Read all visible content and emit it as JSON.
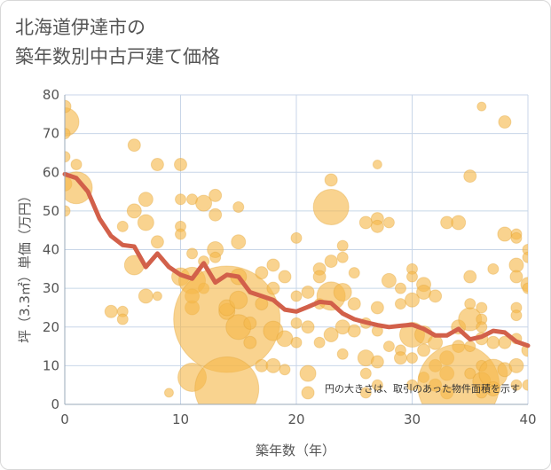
{
  "title_lines": [
    "北海道伊達市の",
    "築年数別中古戸建て価格"
  ],
  "colors": {
    "bubble": "#f5b84a",
    "bubble_stroke": "#e0a030",
    "line": "#d2604a",
    "grid": "#c8d6e8",
    "axis_text": "#555555"
  },
  "chart_data": {
    "type": "scatter",
    "xlabel": "築年数（年）",
    "ylabel": "坪（3.3㎡）単価（万円）",
    "xlim": [
      0,
      40
    ],
    "ylim": [
      0,
      80
    ],
    "x_ticks": [
      0,
      10,
      20,
      30,
      40
    ],
    "y_ticks": [
      0,
      10,
      20,
      30,
      40,
      50,
      60,
      70,
      80
    ],
    "grid": true,
    "annotation": "円の大きさは、取引のあった物件面積を示す",
    "average_line": {
      "x": [
        0,
        1,
        2,
        3,
        4,
        5,
        6,
        7,
        8,
        9,
        10,
        11,
        12,
        13,
        14,
        15,
        16,
        17,
        18,
        19,
        20,
        21,
        22,
        23,
        24,
        25,
        26,
        27,
        28,
        29,
        30,
        31,
        32,
        33,
        34,
        35,
        36,
        37,
        38,
        39,
        40
      ],
      "y": [
        59.5,
        58.5,
        55,
        48,
        43.5,
        41.2,
        40.8,
        35.5,
        39,
        35.5,
        33.5,
        32.5,
        36.5,
        31.5,
        33.5,
        33,
        29,
        28,
        27,
        24.5,
        24,
        25.2,
        26.5,
        26.2,
        23.5,
        22,
        21.2,
        20.5,
        20,
        20.3,
        20.6,
        19.5,
        17.8,
        17.8,
        19.5,
        16.8,
        17.5,
        19,
        18.6,
        16.2,
        15.2
      ]
    },
    "bubbles": [
      {
        "x": 0,
        "y": 73,
        "s": 16
      },
      {
        "x": 0,
        "y": 77,
        "s": 7
      },
      {
        "x": 0,
        "y": 70,
        "s": 6
      },
      {
        "x": 0,
        "y": 64,
        "s": 6
      },
      {
        "x": 0,
        "y": 57,
        "s": 8
      },
      {
        "x": 0,
        "y": 50,
        "s": 6
      },
      {
        "x": 1,
        "y": 62,
        "s": 6
      },
      {
        "x": 1,
        "y": 56,
        "s": 18
      },
      {
        "x": 4,
        "y": 24,
        "s": 7
      },
      {
        "x": 5,
        "y": 46,
        "s": 6
      },
      {
        "x": 5,
        "y": 24,
        "s": 6
      },
      {
        "x": 5,
        "y": 22,
        "s": 6
      },
      {
        "x": 6,
        "y": 67,
        "s": 7
      },
      {
        "x": 6,
        "y": 50,
        "s": 8
      },
      {
        "x": 6,
        "y": 36,
        "s": 11
      },
      {
        "x": 7,
        "y": 53,
        "s": 8
      },
      {
        "x": 7,
        "y": 47,
        "s": 9
      },
      {
        "x": 7,
        "y": 28,
        "s": 8
      },
      {
        "x": 8,
        "y": 62,
        "s": 7
      },
      {
        "x": 8,
        "y": 42,
        "s": 7
      },
      {
        "x": 8,
        "y": 28,
        "s": 5
      },
      {
        "x": 9,
        "y": 3,
        "s": 5
      },
      {
        "x": 10,
        "y": 62,
        "s": 7
      },
      {
        "x": 10,
        "y": 53,
        "s": 6
      },
      {
        "x": 10,
        "y": 46,
        "s": 6
      },
      {
        "x": 10,
        "y": 44,
        "s": 6
      },
      {
        "x": 10,
        "y": 33,
        "s": 10
      },
      {
        "x": 11,
        "y": 53,
        "s": 6
      },
      {
        "x": 11,
        "y": 39,
        "s": 6
      },
      {
        "x": 11,
        "y": 32,
        "s": 15
      },
      {
        "x": 11,
        "y": 25,
        "s": 8
      },
      {
        "x": 11,
        "y": 28,
        "s": 8
      },
      {
        "x": 11,
        "y": 7,
        "s": 16
      },
      {
        "x": 12,
        "y": 52,
        "s": 9
      },
      {
        "x": 12,
        "y": 37,
        "s": 6
      },
      {
        "x": 12,
        "y": 30,
        "s": 6
      },
      {
        "x": 13,
        "y": 54,
        "s": 7
      },
      {
        "x": 13,
        "y": 49,
        "s": 7
      },
      {
        "x": 13,
        "y": 40,
        "s": 9
      },
      {
        "x": 13,
        "y": 38,
        "s": 6
      },
      {
        "x": 14,
        "y": 22,
        "s": 60
      },
      {
        "x": 14,
        "y": 4,
        "s": 36
      },
      {
        "x": 14,
        "y": 24,
        "s": 9
      },
      {
        "x": 14,
        "y": 25,
        "s": 9
      },
      {
        "x": 15,
        "y": 51,
        "s": 6
      },
      {
        "x": 15,
        "y": 42,
        "s": 8
      },
      {
        "x": 15,
        "y": 33,
        "s": 9
      },
      {
        "x": 15,
        "y": 27,
        "s": 10
      },
      {
        "x": 15,
        "y": 20,
        "s": 14
      },
      {
        "x": 16,
        "y": 21,
        "s": 7
      },
      {
        "x": 16,
        "y": 16,
        "s": 7
      },
      {
        "x": 17,
        "y": 34,
        "s": 7
      },
      {
        "x": 17,
        "y": 26,
        "s": 7
      },
      {
        "x": 17,
        "y": 10,
        "s": 7
      },
      {
        "x": 18,
        "y": 36,
        "s": 7
      },
      {
        "x": 18,
        "y": 30,
        "s": 7
      },
      {
        "x": 18,
        "y": 19,
        "s": 11
      },
      {
        "x": 18,
        "y": 10,
        "s": 8
      },
      {
        "x": 19,
        "y": 33,
        "s": 7
      },
      {
        "x": 19,
        "y": 17,
        "s": 9
      },
      {
        "x": 19,
        "y": 9,
        "s": 6
      },
      {
        "x": 20,
        "y": 43,
        "s": 6
      },
      {
        "x": 20,
        "y": 28,
        "s": 6
      },
      {
        "x": 20,
        "y": 21,
        "s": 6
      },
      {
        "x": 20,
        "y": 16,
        "s": 6
      },
      {
        "x": 21,
        "y": 29,
        "s": 7
      },
      {
        "x": 21,
        "y": 20,
        "s": 7
      },
      {
        "x": 21,
        "y": 8,
        "s": 9
      },
      {
        "x": 21,
        "y": 3,
        "s": 7
      },
      {
        "x": 22,
        "y": 35,
        "s": 7
      },
      {
        "x": 22,
        "y": 33,
        "s": 7
      },
      {
        "x": 22,
        "y": 26,
        "s": 6
      },
      {
        "x": 22,
        "y": 16,
        "s": 6
      },
      {
        "x": 23,
        "y": 58,
        "s": 7
      },
      {
        "x": 23,
        "y": 51,
        "s": 20
      },
      {
        "x": 23,
        "y": 37,
        "s": 7
      },
      {
        "x": 23,
        "y": 28,
        "s": 16
      },
      {
        "x": 23,
        "y": 18,
        "s": 8
      },
      {
        "x": 24,
        "y": 41,
        "s": 6
      },
      {
        "x": 24,
        "y": 38,
        "s": 6
      },
      {
        "x": 24,
        "y": 29,
        "s": 10
      },
      {
        "x": 24,
        "y": 20,
        "s": 8
      },
      {
        "x": 24,
        "y": 13,
        "s": 6
      },
      {
        "x": 25,
        "y": 34,
        "s": 6
      },
      {
        "x": 25,
        "y": 26,
        "s": 7
      },
      {
        "x": 25,
        "y": 19,
        "s": 7
      },
      {
        "x": 26,
        "y": 47,
        "s": 7
      },
      {
        "x": 26,
        "y": 21,
        "s": 6
      },
      {
        "x": 26,
        "y": 12,
        "s": 9
      },
      {
        "x": 26,
        "y": 3,
        "s": 6
      },
      {
        "x": 26,
        "y": 8,
        "s": 6
      },
      {
        "x": 27,
        "y": 62,
        "s": 5
      },
      {
        "x": 27,
        "y": 48,
        "s": 7
      },
      {
        "x": 27,
        "y": 46,
        "s": 7
      },
      {
        "x": 27,
        "y": 25,
        "s": 7
      },
      {
        "x": 27,
        "y": 19,
        "s": 6
      },
      {
        "x": 27,
        "y": 11,
        "s": 7
      },
      {
        "x": 27,
        "y": 5,
        "s": 6
      },
      {
        "x": 28,
        "y": 47,
        "s": 6
      },
      {
        "x": 28,
        "y": 32,
        "s": 8
      },
      {
        "x": 28,
        "y": 15,
        "s": 6
      },
      {
        "x": 29,
        "y": 30,
        "s": 6
      },
      {
        "x": 29,
        "y": 26,
        "s": 6
      },
      {
        "x": 29,
        "y": 14,
        "s": 6
      },
      {
        "x": 29,
        "y": 12,
        "s": 7
      },
      {
        "x": 30,
        "y": 35,
        "s": 6
      },
      {
        "x": 30,
        "y": 33,
        "s": 6
      },
      {
        "x": 30,
        "y": 27,
        "s": 8
      },
      {
        "x": 30,
        "y": 18,
        "s": 14
      },
      {
        "x": 30,
        "y": 12,
        "s": 6
      },
      {
        "x": 30,
        "y": 5,
        "s": 6
      },
      {
        "x": 31,
        "y": 31,
        "s": 8
      },
      {
        "x": 31,
        "y": 29,
        "s": 8
      },
      {
        "x": 31,
        "y": 18,
        "s": 10
      },
      {
        "x": 31,
        "y": 14,
        "s": 7
      },
      {
        "x": 31,
        "y": 7,
        "s": 6
      },
      {
        "x": 32,
        "y": 28,
        "s": 7
      },
      {
        "x": 32,
        "y": 16,
        "s": 8
      },
      {
        "x": 32,
        "y": 10,
        "s": 7
      },
      {
        "x": 32,
        "y": 5,
        "s": 7
      },
      {
        "x": 33,
        "y": 47,
        "s": 7
      },
      {
        "x": 33,
        "y": 12,
        "s": 8
      },
      {
        "x": 33,
        "y": 8,
        "s": 8
      },
      {
        "x": 33,
        "y": 3,
        "s": 7
      },
      {
        "x": 34,
        "y": 47,
        "s": 8
      },
      {
        "x": 34,
        "y": 20,
        "s": 8
      },
      {
        "x": 34,
        "y": 15,
        "s": 7
      },
      {
        "x": 34,
        "y": 5,
        "s": 46
      },
      {
        "x": 35,
        "y": 59,
        "s": 7
      },
      {
        "x": 35,
        "y": 33,
        "s": 7
      },
      {
        "x": 35,
        "y": 26,
        "s": 6
      },
      {
        "x": 35,
        "y": 22,
        "s": 13
      },
      {
        "x": 35,
        "y": 15,
        "s": 6
      },
      {
        "x": 35,
        "y": 8,
        "s": 6
      },
      {
        "x": 36,
        "y": 77,
        "s": 5
      },
      {
        "x": 36,
        "y": 25,
        "s": 6
      },
      {
        "x": 36,
        "y": 22,
        "s": 6
      },
      {
        "x": 36,
        "y": 20,
        "s": 6
      },
      {
        "x": 36,
        "y": 17,
        "s": 7
      },
      {
        "x": 36,
        "y": 10,
        "s": 6
      },
      {
        "x": 36,
        "y": 6,
        "s": 10
      },
      {
        "x": 36,
        "y": 3,
        "s": 6
      },
      {
        "x": 37,
        "y": 35,
        "s": 6
      },
      {
        "x": 37,
        "y": 16,
        "s": 7
      },
      {
        "x": 37,
        "y": 8,
        "s": 16
      },
      {
        "x": 37,
        "y": 4,
        "s": 8
      },
      {
        "x": 38,
        "y": 73,
        "s": 7
      },
      {
        "x": 38,
        "y": 44,
        "s": 8
      },
      {
        "x": 38,
        "y": 16,
        "s": 7
      },
      {
        "x": 38,
        "y": 9,
        "s": 8
      },
      {
        "x": 39,
        "y": 44,
        "s": 6
      },
      {
        "x": 39,
        "y": 43,
        "s": 6
      },
      {
        "x": 39,
        "y": 36,
        "s": 8
      },
      {
        "x": 39,
        "y": 33,
        "s": 7
      },
      {
        "x": 39,
        "y": 25,
        "s": 6
      },
      {
        "x": 39,
        "y": 23,
        "s": 6
      },
      {
        "x": 39,
        "y": 17,
        "s": 6
      },
      {
        "x": 39,
        "y": 10,
        "s": 8
      },
      {
        "x": 39,
        "y": 5,
        "s": 6
      },
      {
        "x": 40,
        "y": 40,
        "s": 6
      },
      {
        "x": 40,
        "y": 38,
        "s": 6
      },
      {
        "x": 40,
        "y": 31,
        "s": 8
      },
      {
        "x": 40,
        "y": 30,
        "s": 6
      },
      {
        "x": 40,
        "y": 14,
        "s": 7
      },
      {
        "x": 40,
        "y": 5,
        "s": 6
      }
    ]
  }
}
